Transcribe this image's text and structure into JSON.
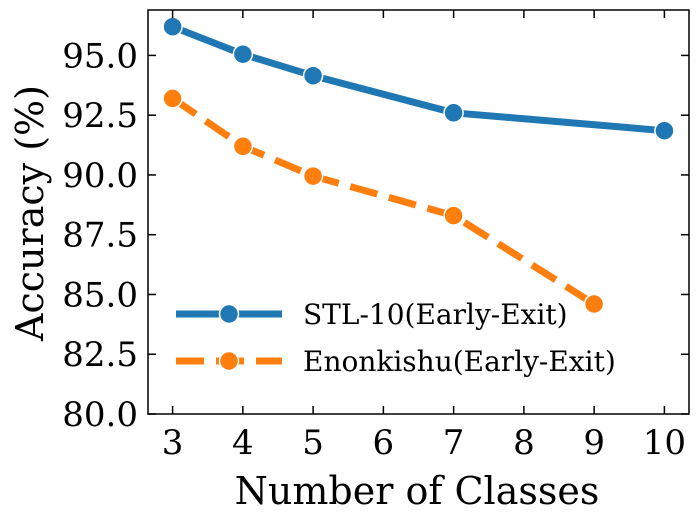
{
  "chart_data": {
    "type": "line",
    "title": "",
    "xlabel": "Number of Classes",
    "ylabel": "Accuracy (%)",
    "xlim": [
      2.65,
      10.35
    ],
    "ylim": [
      80.0,
      96.9
    ],
    "xticks": [
      3,
      4,
      5,
      6,
      7,
      8,
      9,
      10
    ],
    "yticks": [
      80.0,
      82.5,
      85.0,
      87.5,
      90.0,
      92.5,
      95.0
    ],
    "ytick_labels": [
      "80.0",
      "82.5",
      "85.0",
      "87.5",
      "90.0",
      "92.5",
      "95.0"
    ],
    "grid": false,
    "legend_position": "lower-left",
    "series": [
      {
        "name": "STL-10(Early-Exit)",
        "color": "#1f77b4",
        "linestyle": "solid",
        "x": [
          3,
          4,
          5,
          7,
          10
        ],
        "values": [
          96.2,
          95.05,
          94.15,
          92.6,
          91.85
        ]
      },
      {
        "name": "Enonkishu(Early-Exit)",
        "color": "#ff7f0e",
        "linestyle": "dashed",
        "x": [
          3,
          4,
          5,
          7,
          9
        ],
        "values": [
          93.2,
          91.2,
          89.95,
          88.3,
          84.6
        ]
      }
    ]
  }
}
